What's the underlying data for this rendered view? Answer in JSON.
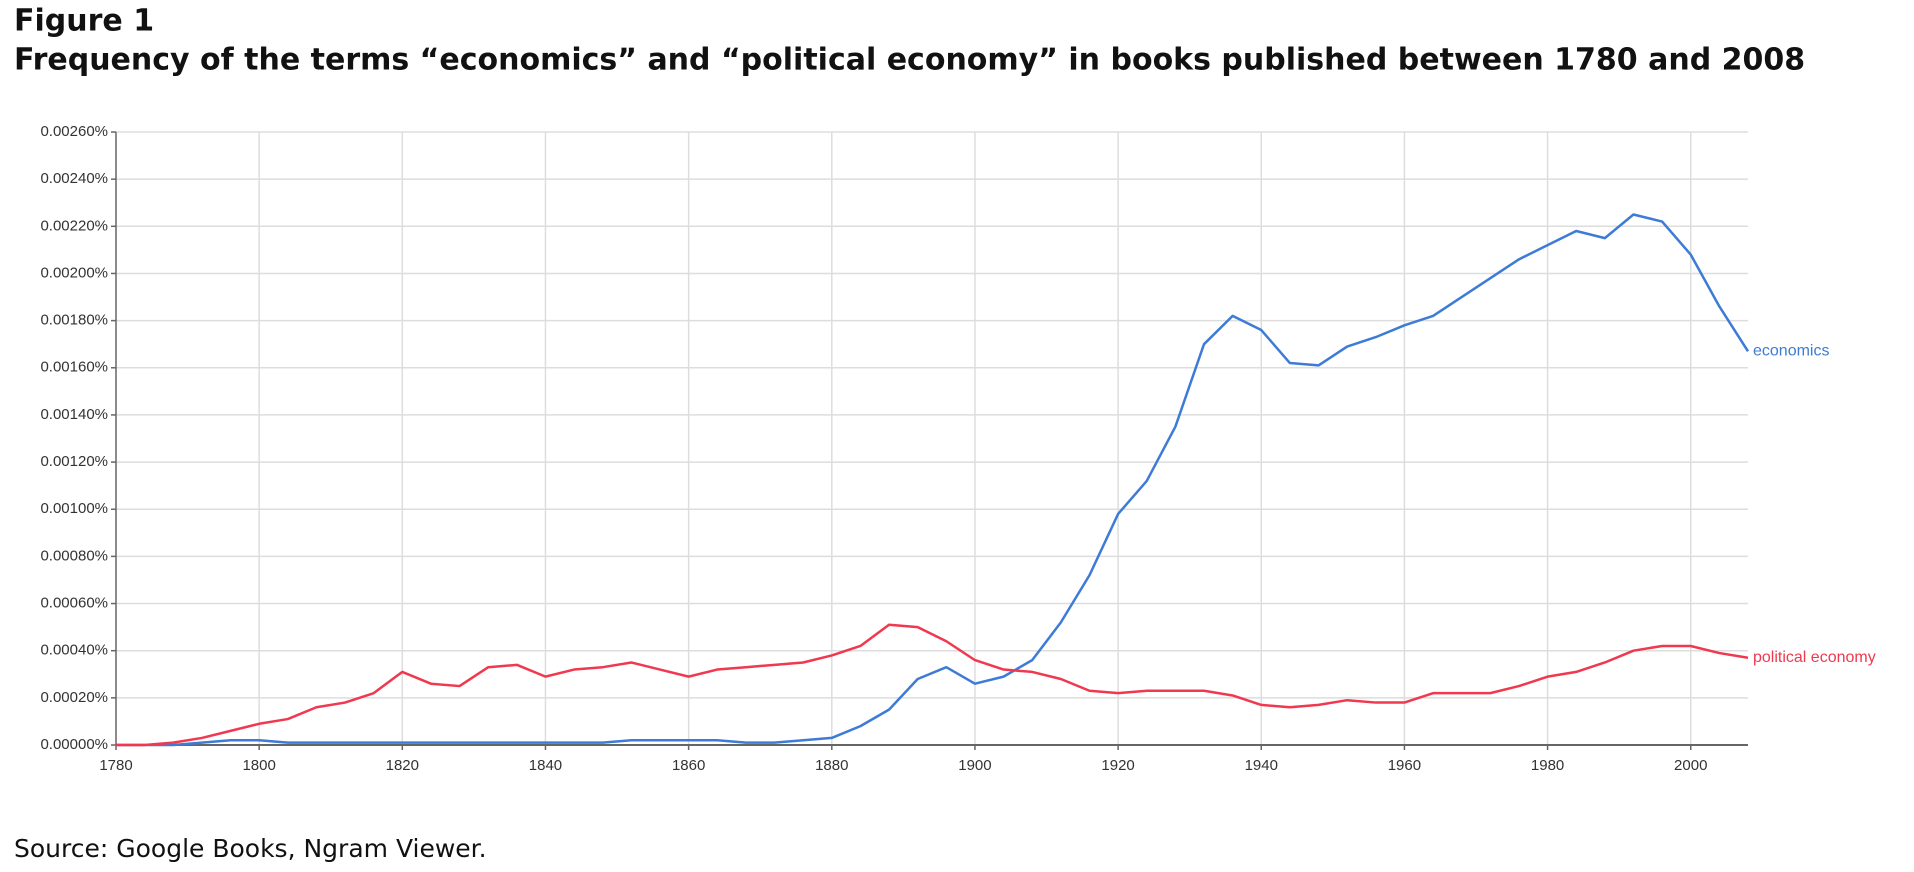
{
  "chart_data": {
    "type": "line",
    "figure_label": "Figure 1",
    "title": "Frequency of the terms “economics” and “political economy” in books published between 1780 and 2008",
    "source": "Source: Google Books, Ngram Viewer.",
    "x": [
      1780,
      1784,
      1788,
      1792,
      1796,
      1800,
      1804,
      1808,
      1812,
      1816,
      1820,
      1824,
      1828,
      1832,
      1836,
      1840,
      1844,
      1848,
      1852,
      1856,
      1860,
      1864,
      1868,
      1872,
      1876,
      1880,
      1884,
      1888,
      1892,
      1896,
      1900,
      1904,
      1908,
      1912,
      1916,
      1920,
      1924,
      1928,
      1932,
      1936,
      1940,
      1944,
      1948,
      1952,
      1956,
      1960,
      1964,
      1968,
      1972,
      1976,
      1980,
      1984,
      1988,
      1992,
      1996,
      2000,
      2004,
      2008
    ],
    "series": [
      {
        "name": "economics",
        "color": "#3d7bd6",
        "values": [
          0,
          0,
          0,
          1e-05,
          2e-05,
          2e-05,
          1e-05,
          1e-05,
          1e-05,
          1e-05,
          1e-05,
          1e-05,
          1e-05,
          1e-05,
          1e-05,
          1e-05,
          1e-05,
          1e-05,
          2e-05,
          2e-05,
          2e-05,
          2e-05,
          1e-05,
          1e-05,
          2e-05,
          3e-05,
          8e-05,
          0.00015,
          0.00028,
          0.00033,
          0.00026,
          0.00029,
          0.00036,
          0.00052,
          0.00072,
          0.00098,
          0.00112,
          0.00135,
          0.0017,
          0.00182,
          0.00176,
          0.00162,
          0.00161,
          0.00169,
          0.00173,
          0.00178,
          0.00182,
          0.0019,
          0.00198,
          0.00206,
          0.00212,
          0.00218,
          0.00215,
          0.00225,
          0.00222,
          0.00208,
          0.00186,
          0.00167
        ]
      },
      {
        "name": "political economy",
        "color": "#f0384f",
        "values": [
          0,
          0,
          1e-05,
          3e-05,
          6e-05,
          9e-05,
          0.00011,
          0.00016,
          0.00018,
          0.00022,
          0.00031,
          0.00026,
          0.00025,
          0.00033,
          0.00034,
          0.00029,
          0.00032,
          0.00033,
          0.00035,
          0.00032,
          0.00029,
          0.00032,
          0.00033,
          0.00034,
          0.00035,
          0.00038,
          0.00042,
          0.00051,
          0.0005,
          0.00044,
          0.00036,
          0.00032,
          0.00031,
          0.00028,
          0.00023,
          0.00022,
          0.00023,
          0.00023,
          0.00023,
          0.00021,
          0.00017,
          0.00016,
          0.00017,
          0.00019,
          0.00018,
          0.00018,
          0.00022,
          0.00022,
          0.00022,
          0.00025,
          0.00029,
          0.00031,
          0.00035,
          0.0004,
          0.00042,
          0.00042,
          0.00039,
          0.00037
        ]
      }
    ],
    "xlim": [
      1780,
      2008
    ],
    "xticks": [
      1780,
      1800,
      1820,
      1840,
      1860,
      1880,
      1900,
      1920,
      1940,
      1960,
      1980,
      2000
    ],
    "ylim": [
      0,
      0.0026
    ],
    "yticks": [
      {
        "value": 0,
        "label": "0.00000%"
      },
      {
        "value": 0.0002,
        "label": "0.00020%"
      },
      {
        "value": 0.0004,
        "label": "0.00040%"
      },
      {
        "value": 0.0006,
        "label": "0.00060%"
      },
      {
        "value": 0.0008,
        "label": "0.00080%"
      },
      {
        "value": 0.001,
        "label": "0.00100%"
      },
      {
        "value": 0.0012,
        "label": "0.00120%"
      },
      {
        "value": 0.0014,
        "label": "0.00140%"
      },
      {
        "value": 0.0016,
        "label": "0.00160%"
      },
      {
        "value": 0.0018,
        "label": "0.00180%"
      },
      {
        "value": 0.002,
        "label": "0.00200%"
      },
      {
        "value": 0.0022,
        "label": "0.00220%"
      },
      {
        "value": 0.0024,
        "label": "0.00240%"
      },
      {
        "value": 0.0026,
        "label": "0.00260%"
      }
    ],
    "grid": true
  }
}
